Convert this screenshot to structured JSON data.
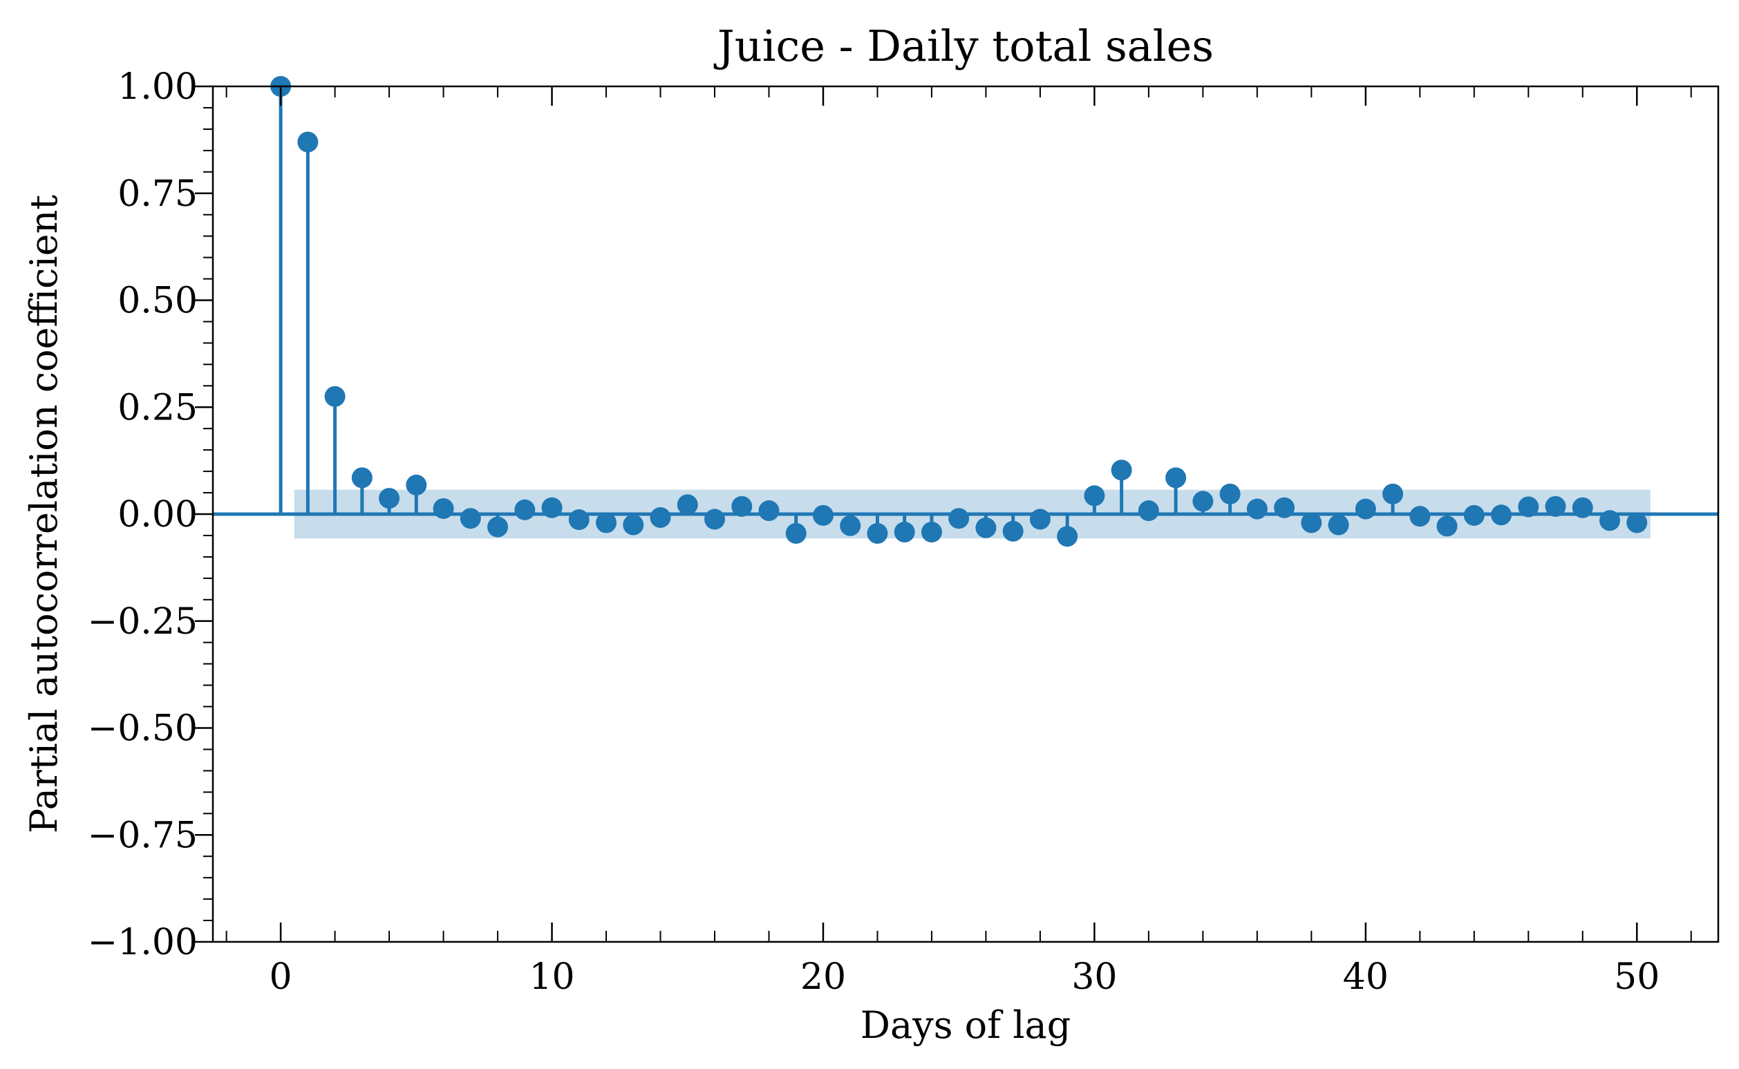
{
  "chart_data": {
    "type": "stem",
    "title": "Juice - Daily total sales",
    "xlabel": "Days of lag",
    "ylabel": "Partial autocorrelation coefficient",
    "xlim": [
      -2.5,
      53
    ],
    "ylim": [
      -1.0,
      1.0
    ],
    "xticks": [
      0,
      10,
      20,
      30,
      40,
      50
    ],
    "xtick_labels": [
      "0",
      "10",
      "20",
      "30",
      "40",
      "50"
    ],
    "yticks": [
      1.0,
      0.75,
      0.5,
      0.25,
      0.0,
      -0.25,
      -0.5,
      -0.75,
      -1.0
    ],
    "ytick_labels": [
      "1.00",
      "0.75",
      "0.50",
      "0.25",
      "0.00",
      "−0.25",
      "−0.50",
      "−0.75",
      "−1.00"
    ],
    "confidence_band": {
      "x_range": [
        0.5,
        50.5
      ],
      "lower": -0.057,
      "upper": 0.057
    },
    "series": [
      {
        "x": [
          0,
          1,
          2,
          3,
          4,
          5,
          6,
          7,
          8,
          9,
          10,
          11,
          12,
          13,
          14,
          15,
          16,
          17,
          18,
          19,
          20,
          21,
          22,
          23,
          24,
          25,
          26,
          27,
          28,
          29,
          30,
          31,
          32,
          33,
          34,
          35,
          36,
          37,
          38,
          39,
          40,
          41,
          42,
          43,
          44,
          45,
          46,
          47,
          48,
          49,
          50
        ],
        "values": [
          1.0,
          0.87,
          0.275,
          0.085,
          0.037,
          0.068,
          0.013,
          -0.01,
          -0.03,
          0.01,
          0.015,
          -0.013,
          -0.02,
          -0.025,
          -0.008,
          0.022,
          -0.012,
          0.018,
          0.008,
          -0.045,
          -0.003,
          -0.027,
          -0.045,
          -0.042,
          -0.042,
          -0.01,
          -0.032,
          -0.04,
          -0.012,
          -0.052,
          0.043,
          0.103,
          0.008,
          0.085,
          0.03,
          0.047,
          0.012,
          0.015,
          -0.02,
          -0.025,
          0.012,
          0.047,
          -0.005,
          -0.028,
          -0.003,
          -0.002,
          0.017,
          0.018,
          0.015,
          -0.015,
          -0.02
        ]
      }
    ],
    "colors": {
      "series": "#1f77b4",
      "band": "#1f77b4",
      "band_opacity": 0.25,
      "axes": "#000000"
    },
    "grid": false,
    "legend": "none"
  }
}
